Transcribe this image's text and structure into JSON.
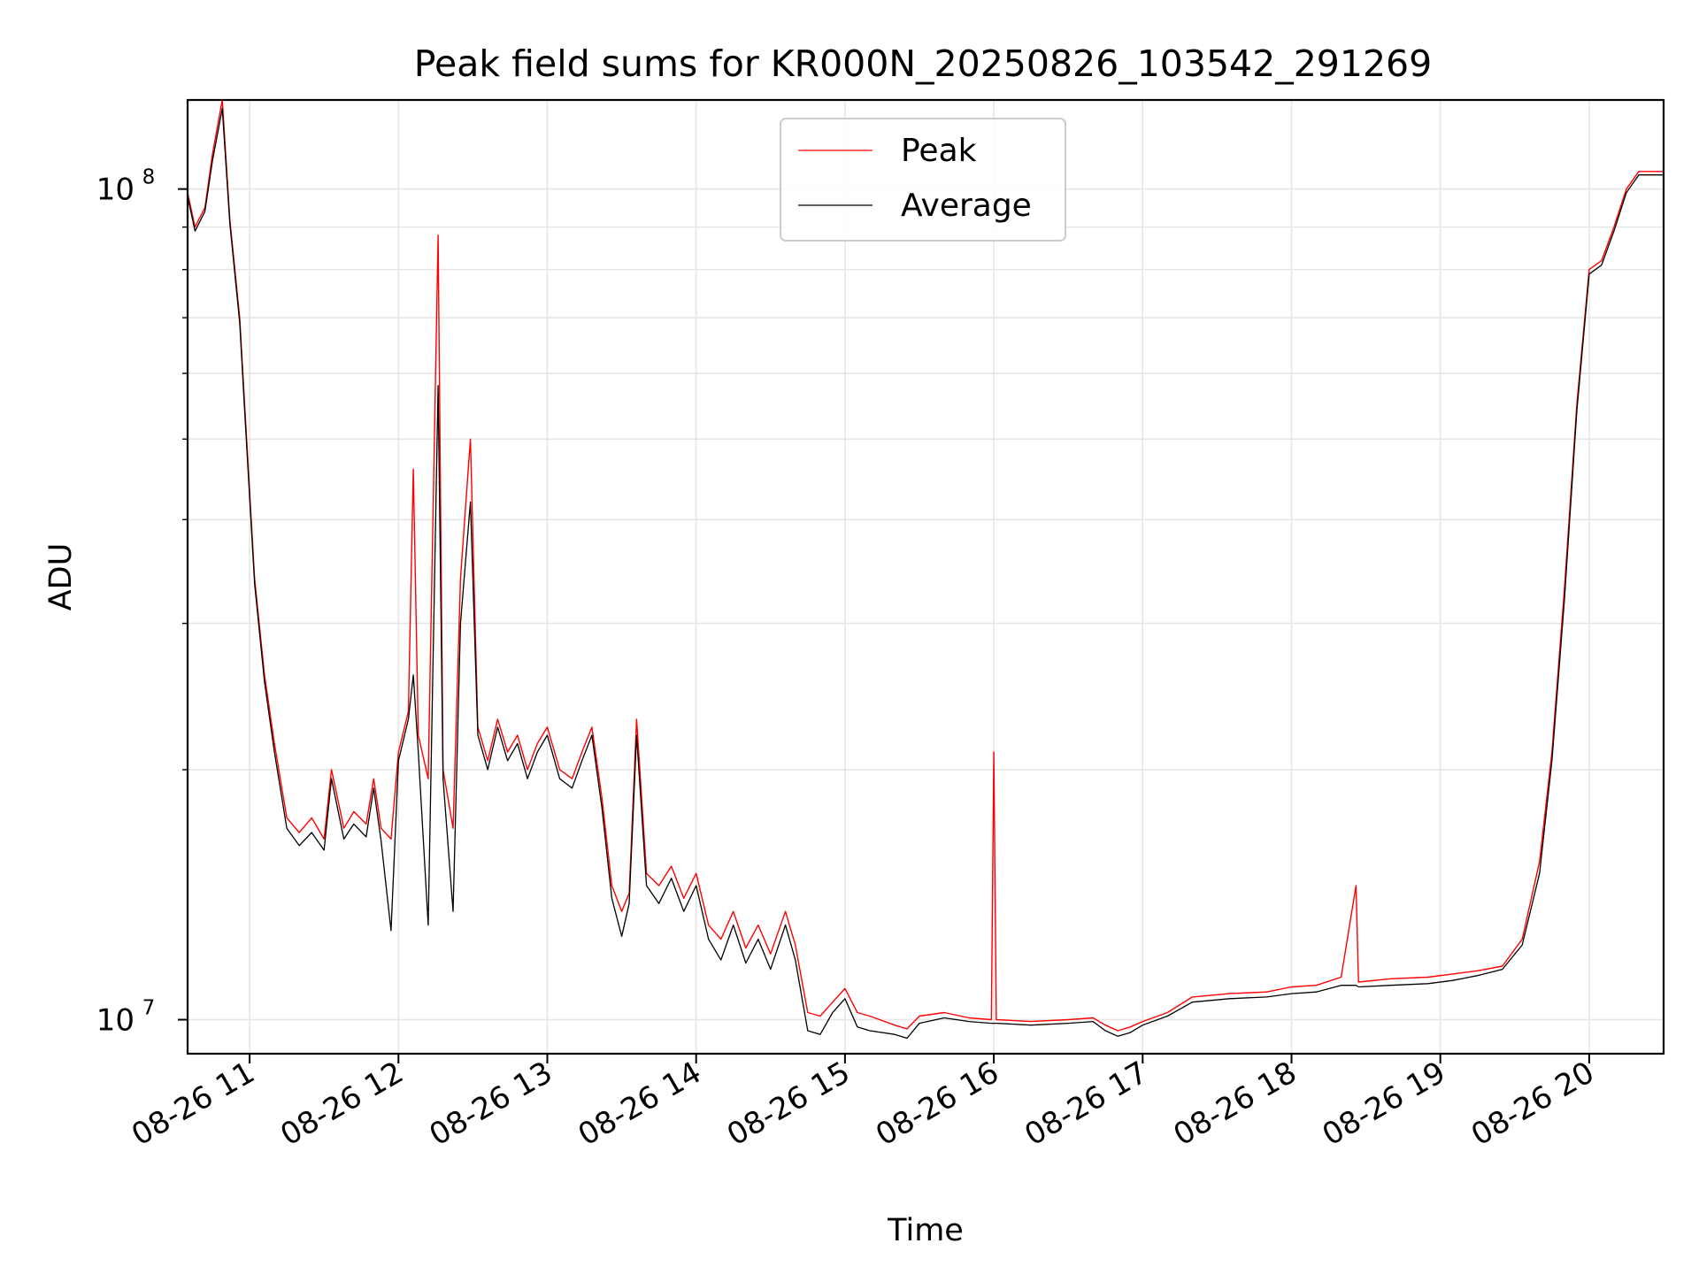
{
  "chart_data": {
    "type": "line",
    "title": "Peak field sums for KR000N_20250826_103542_291269",
    "xlabel": "Time",
    "ylabel": "ADU",
    "yscale": "log",
    "xlim": [
      "2025-08-26 10:35",
      "2025-08-26 20:30"
    ],
    "ylim": [
      9100000,
      128000000
    ],
    "grid": true,
    "legend_position": "top-center",
    "x_ticks": [
      "08-26 11",
      "08-26 12",
      "08-26 13",
      "08-26 14",
      "08-26 15",
      "08-26 16",
      "08-26 17",
      "08-26 18",
      "08-26 19",
      "08-26 20"
    ],
    "y_ticks": [
      {
        "value": 10000000,
        "base": "10",
        "exp": "7"
      },
      {
        "value": 100000000,
        "base": "10",
        "exp": "8"
      }
    ],
    "series": [
      {
        "name": "Peak",
        "color": "#ff0000",
        "points": [
          [
            "2025-08-26 10:35",
            99000000
          ],
          [
            "2025-08-26 10:38",
            90000000
          ],
          [
            "2025-08-26 10:42",
            95000000
          ],
          [
            "2025-08-26 10:45",
            110000000
          ],
          [
            "2025-08-26 10:49",
            128000000
          ],
          [
            "2025-08-26 10:52",
            92000000
          ],
          [
            "2025-08-26 10:56",
            70000000
          ],
          [
            "2025-08-26 10:58",
            55000000
          ],
          [
            "2025-08-26 11:02",
            34000000
          ],
          [
            "2025-08-26 11:06",
            26000000
          ],
          [
            "2025-08-26 11:10",
            21500000
          ],
          [
            "2025-08-26 11:15",
            17500000
          ],
          [
            "2025-08-26 11:20",
            16800000
          ],
          [
            "2025-08-26 11:25",
            17500000
          ],
          [
            "2025-08-26 11:30",
            16500000
          ],
          [
            "2025-08-26 11:33",
            20000000
          ],
          [
            "2025-08-26 11:38",
            17000000
          ],
          [
            "2025-08-26 11:42",
            17800000
          ],
          [
            "2025-08-26 11:47",
            17200000
          ],
          [
            "2025-08-26 11:50",
            19500000
          ],
          [
            "2025-08-26 11:53",
            17000000
          ],
          [
            "2025-08-26 11:57",
            16500000
          ],
          [
            "2025-08-26 12:00",
            21000000
          ],
          [
            "2025-08-26 12:04",
            23500000
          ],
          [
            "2025-08-26 12:06",
            46000000
          ],
          [
            "2025-08-26 12:08",
            22000000
          ],
          [
            "2025-08-26 12:12",
            19500000
          ],
          [
            "2025-08-26 12:16",
            88000000
          ],
          [
            "2025-08-26 12:18",
            20000000
          ],
          [
            "2025-08-26 12:22",
            17000000
          ],
          [
            "2025-08-26 12:25",
            34000000
          ],
          [
            "2025-08-26 12:29",
            50000000
          ],
          [
            "2025-08-26 12:32",
            22500000
          ],
          [
            "2025-08-26 12:36",
            20500000
          ],
          [
            "2025-08-26 12:40",
            23000000
          ],
          [
            "2025-08-26 12:44",
            21000000
          ],
          [
            "2025-08-26 12:48",
            22000000
          ],
          [
            "2025-08-26 12:52",
            20000000
          ],
          [
            "2025-08-26 12:56",
            21500000
          ],
          [
            "2025-08-26 13:00",
            22500000
          ],
          [
            "2025-08-26 13:05",
            20000000
          ],
          [
            "2025-08-26 13:10",
            19500000
          ],
          [
            "2025-08-26 13:14",
            21000000
          ],
          [
            "2025-08-26 13:18",
            22500000
          ],
          [
            "2025-08-26 13:22",
            18500000
          ],
          [
            "2025-08-26 13:26",
            14500000
          ],
          [
            "2025-08-26 13:30",
            13500000
          ],
          [
            "2025-08-26 13:33",
            14200000
          ],
          [
            "2025-08-26 13:36",
            23000000
          ],
          [
            "2025-08-26 13:40",
            15000000
          ],
          [
            "2025-08-26 13:45",
            14500000
          ],
          [
            "2025-08-26 13:50",
            15300000
          ],
          [
            "2025-08-26 13:55",
            14000000
          ],
          [
            "2025-08-26 14:00",
            15000000
          ],
          [
            "2025-08-26 14:05",
            13000000
          ],
          [
            "2025-08-26 14:10",
            12500000
          ],
          [
            "2025-08-26 14:15",
            13500000
          ],
          [
            "2025-08-26 14:20",
            12200000
          ],
          [
            "2025-08-26 14:25",
            13000000
          ],
          [
            "2025-08-26 14:30",
            12000000
          ],
          [
            "2025-08-26 14:36",
            13500000
          ],
          [
            "2025-08-26 14:40",
            12300000
          ],
          [
            "2025-08-26 14:45",
            10200000
          ],
          [
            "2025-08-26 14:50",
            10100000
          ],
          [
            "2025-08-26 14:55",
            10500000
          ],
          [
            "2025-08-26 15:00",
            10900000
          ],
          [
            "2025-08-26 15:05",
            10200000
          ],
          [
            "2025-08-26 15:10",
            10100000
          ],
          [
            "2025-08-26 15:20",
            9850000
          ],
          [
            "2025-08-26 15:25",
            9750000
          ],
          [
            "2025-08-26 15:30",
            10100000
          ],
          [
            "2025-08-26 15:40",
            10200000
          ],
          [
            "2025-08-26 15:50",
            10050000
          ],
          [
            "2025-08-26 15:59",
            10000000
          ],
          [
            "2025-08-26 16:00",
            21000000
          ],
          [
            "2025-08-26 16:01",
            10000000
          ],
          [
            "2025-08-26 16:15",
            9950000
          ],
          [
            "2025-08-26 16:30",
            10000000
          ],
          [
            "2025-08-26 16:40",
            10050000
          ],
          [
            "2025-08-26 16:45",
            9850000
          ],
          [
            "2025-08-26 16:50",
            9700000
          ],
          [
            "2025-08-26 16:55",
            9800000
          ],
          [
            "2025-08-26 17:00",
            9950000
          ],
          [
            "2025-08-26 17:10",
            10200000
          ],
          [
            "2025-08-26 17:20",
            10650000
          ],
          [
            "2025-08-26 17:35",
            10750000
          ],
          [
            "2025-08-26 17:50",
            10800000
          ],
          [
            "2025-08-26 18:00",
            10950000
          ],
          [
            "2025-08-26 18:10",
            11000000
          ],
          [
            "2025-08-26 18:20",
            11250000
          ],
          [
            "2025-08-26 18:26",
            14500000
          ],
          [
            "2025-08-26 18:27",
            11100000
          ],
          [
            "2025-08-26 18:40",
            11200000
          ],
          [
            "2025-08-26 18:55",
            11250000
          ],
          [
            "2025-08-26 19:05",
            11350000
          ],
          [
            "2025-08-26 19:15",
            11450000
          ],
          [
            "2025-08-26 19:25",
            11600000
          ],
          [
            "2025-08-26 19:33",
            12500000
          ],
          [
            "2025-08-26 19:40",
            15500000
          ],
          [
            "2025-08-26 19:45",
            21000000
          ],
          [
            "2025-08-26 19:50",
            33000000
          ],
          [
            "2025-08-26 19:55",
            55000000
          ],
          [
            "2025-08-26 20:00",
            80000000
          ],
          [
            "2025-08-26 20:05",
            82000000
          ],
          [
            "2025-08-26 20:10",
            90000000
          ],
          [
            "2025-08-26 20:15",
            100000000
          ],
          [
            "2025-08-26 20:20",
            105000000
          ],
          [
            "2025-08-26 20:30",
            105000000
          ]
        ]
      },
      {
        "name": "Average",
        "color": "#000000",
        "points": [
          [
            "2025-08-26 10:35",
            98000000
          ],
          [
            "2025-08-26 10:38",
            89000000
          ],
          [
            "2025-08-26 10:42",
            94000000
          ],
          [
            "2025-08-26 10:45",
            108000000
          ],
          [
            "2025-08-26 10:49",
            125000000
          ],
          [
            "2025-08-26 10:52",
            91000000
          ],
          [
            "2025-08-26 10:56",
            69000000
          ],
          [
            "2025-08-26 10:58",
            54000000
          ],
          [
            "2025-08-26 11:02",
            33500000
          ],
          [
            "2025-08-26 11:06",
            25500000
          ],
          [
            "2025-08-26 11:10",
            21000000
          ],
          [
            "2025-08-26 11:15",
            17000000
          ],
          [
            "2025-08-26 11:20",
            16200000
          ],
          [
            "2025-08-26 11:25",
            16800000
          ],
          [
            "2025-08-26 11:30",
            16000000
          ],
          [
            "2025-08-26 11:33",
            19500000
          ],
          [
            "2025-08-26 11:38",
            16500000
          ],
          [
            "2025-08-26 11:42",
            17200000
          ],
          [
            "2025-08-26 11:47",
            16600000
          ],
          [
            "2025-08-26 11:50",
            19000000
          ],
          [
            "2025-08-26 11:53",
            16400000
          ],
          [
            "2025-08-26 11:57",
            12800000
          ],
          [
            "2025-08-26 12:00",
            20500000
          ],
          [
            "2025-08-26 12:04",
            23000000
          ],
          [
            "2025-08-26 12:06",
            26000000
          ],
          [
            "2025-08-26 12:08",
            21000000
          ],
          [
            "2025-08-26 12:12",
            13000000
          ],
          [
            "2025-08-26 12:16",
            58000000
          ],
          [
            "2025-08-26 12:18",
            19500000
          ],
          [
            "2025-08-26 12:22",
            13500000
          ],
          [
            "2025-08-26 12:25",
            30000000
          ],
          [
            "2025-08-26 12:29",
            42000000
          ],
          [
            "2025-08-26 12:32",
            22000000
          ],
          [
            "2025-08-26 12:36",
            20000000
          ],
          [
            "2025-08-26 12:40",
            22500000
          ],
          [
            "2025-08-26 12:44",
            20500000
          ],
          [
            "2025-08-26 12:48",
            21500000
          ],
          [
            "2025-08-26 12:52",
            19500000
          ],
          [
            "2025-08-26 12:56",
            21000000
          ],
          [
            "2025-08-26 13:00",
            22000000
          ],
          [
            "2025-08-26 13:05",
            19500000
          ],
          [
            "2025-08-26 13:10",
            19000000
          ],
          [
            "2025-08-26 13:14",
            20500000
          ],
          [
            "2025-08-26 13:18",
            22000000
          ],
          [
            "2025-08-26 13:22",
            18000000
          ],
          [
            "2025-08-26 13:26",
            14000000
          ],
          [
            "2025-08-26 13:30",
            12600000
          ],
          [
            "2025-08-26 13:33",
            13800000
          ],
          [
            "2025-08-26 13:36",
            22000000
          ],
          [
            "2025-08-26 13:40",
            14500000
          ],
          [
            "2025-08-26 13:45",
            13800000
          ],
          [
            "2025-08-26 13:50",
            14800000
          ],
          [
            "2025-08-26 13:55",
            13500000
          ],
          [
            "2025-08-26 14:00",
            14500000
          ],
          [
            "2025-08-26 14:05",
            12500000
          ],
          [
            "2025-08-26 14:10",
            11800000
          ],
          [
            "2025-08-26 14:15",
            13000000
          ],
          [
            "2025-08-26 14:20",
            11700000
          ],
          [
            "2025-08-26 14:25",
            12500000
          ],
          [
            "2025-08-26 14:30",
            11500000
          ],
          [
            "2025-08-26 14:36",
            13000000
          ],
          [
            "2025-08-26 14:40",
            11800000
          ],
          [
            "2025-08-26 14:45",
            9700000
          ],
          [
            "2025-08-26 14:50",
            9600000
          ],
          [
            "2025-08-26 14:55",
            10200000
          ],
          [
            "2025-08-26 15:00",
            10600000
          ],
          [
            "2025-08-26 15:05",
            9800000
          ],
          [
            "2025-08-26 15:10",
            9700000
          ],
          [
            "2025-08-26 15:20",
            9600000
          ],
          [
            "2025-08-26 15:25",
            9500000
          ],
          [
            "2025-08-26 15:30",
            9900000
          ],
          [
            "2025-08-26 15:40",
            10050000
          ],
          [
            "2025-08-26 15:50",
            9950000
          ],
          [
            "2025-08-26 15:59",
            9900000
          ],
          [
            "2025-08-26 16:00",
            9900000
          ],
          [
            "2025-08-26 16:01",
            9900000
          ],
          [
            "2025-08-26 16:15",
            9850000
          ],
          [
            "2025-08-26 16:30",
            9900000
          ],
          [
            "2025-08-26 16:40",
            9950000
          ],
          [
            "2025-08-26 16:45",
            9700000
          ],
          [
            "2025-08-26 16:50",
            9550000
          ],
          [
            "2025-08-26 16:55",
            9650000
          ],
          [
            "2025-08-26 17:00",
            9850000
          ],
          [
            "2025-08-26 17:10",
            10100000
          ],
          [
            "2025-08-26 17:20",
            10500000
          ],
          [
            "2025-08-26 17:35",
            10600000
          ],
          [
            "2025-08-26 17:50",
            10650000
          ],
          [
            "2025-08-26 18:00",
            10750000
          ],
          [
            "2025-08-26 18:10",
            10800000
          ],
          [
            "2025-08-26 18:20",
            11000000
          ],
          [
            "2025-08-26 18:26",
            11000000
          ],
          [
            "2025-08-26 18:27",
            10950000
          ],
          [
            "2025-08-26 18:40",
            11000000
          ],
          [
            "2025-08-26 18:55",
            11050000
          ],
          [
            "2025-08-26 19:05",
            11150000
          ],
          [
            "2025-08-26 19:15",
            11300000
          ],
          [
            "2025-08-26 19:25",
            11500000
          ],
          [
            "2025-08-26 19:33",
            12300000
          ],
          [
            "2025-08-26 19:40",
            15000000
          ],
          [
            "2025-08-26 19:45",
            20500000
          ],
          [
            "2025-08-26 19:50",
            32000000
          ],
          [
            "2025-08-26 19:55",
            54000000
          ],
          [
            "2025-08-26 20:00",
            79000000
          ],
          [
            "2025-08-26 20:05",
            81000000
          ],
          [
            "2025-08-26 20:10",
            89000000
          ],
          [
            "2025-08-26 20:15",
            99000000
          ],
          [
            "2025-08-26 20:20",
            104000000
          ],
          [
            "2025-08-26 20:30",
            104000000
          ]
        ]
      }
    ]
  }
}
